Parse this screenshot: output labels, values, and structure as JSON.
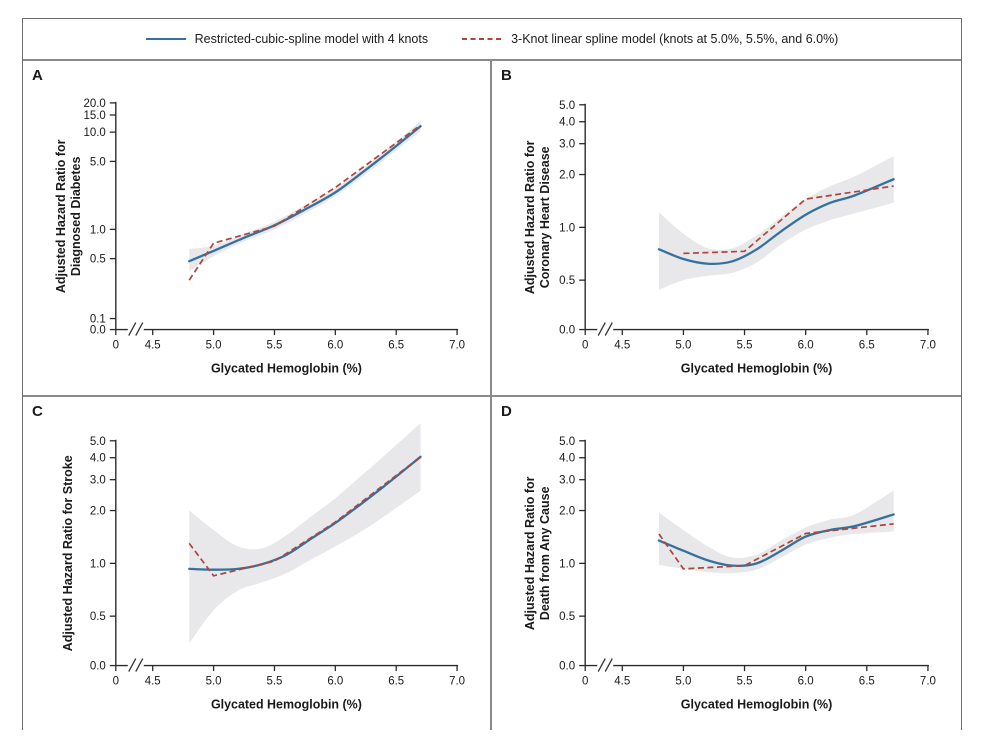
{
  "legend": {
    "items": [
      {
        "label": "Restricted-cubic-spline model with 4 knots",
        "style": "solid",
        "color": "#35719f"
      },
      {
        "label": "3-Knot linear spline model (knots at 5.0%, 5.5%, and 6.0%)",
        "style": "dashed",
        "color": "#ae453e"
      }
    ]
  },
  "colors": {
    "band": "#e8e8ea",
    "axis": "#2b2b2b",
    "solid_line": "#35719f",
    "dashed_line": "#ae453e"
  },
  "chart_data": [
    {
      "panel": "A",
      "type": "line",
      "yscale": "log",
      "outcome": "Diagnosed Diabetes",
      "xlabel": "Glycated Hemoglobin (%)",
      "ylabel_lines": [
        "Adjusted Hazard Ratio for",
        "Diagnosed Diabetes"
      ],
      "xtick_labels": [
        "0",
        "4.5",
        "5.0",
        "5.5",
        "6.0",
        "6.5",
        "7.0"
      ],
      "ytick_labels": [
        "20.0",
        "15.0",
        "10.0",
        "5.0",
        "1.0",
        "0.5",
        "0.1",
        "0.0"
      ],
      "series": [
        {
          "name": "Restricted-cubic-spline model with 4 knots",
          "line": "solid",
          "x": [
            4.8,
            5.0,
            5.25,
            5.5,
            5.75,
            6.0,
            6.25,
            6.5,
            6.7
          ],
          "y": [
            0.47,
            0.6,
            0.82,
            1.1,
            1.6,
            2.4,
            4.1,
            7.2,
            11.5
          ]
        },
        {
          "name": "3-Knot linear spline model",
          "line": "dashed",
          "x": [
            4.8,
            5.0,
            5.5,
            6.0,
            6.7
          ],
          "y": [
            0.3,
            0.72,
            1.08,
            2.7,
            11.8
          ]
        }
      ],
      "confidence_band": {
        "x": [
          4.8,
          5.0,
          5.25,
          5.5,
          5.75,
          6.0,
          6.25,
          6.5,
          6.7
        ],
        "lower": [
          0.37,
          0.53,
          0.75,
          1.0,
          1.45,
          2.2,
          3.7,
          6.5,
          10.2
        ],
        "upper": [
          0.63,
          0.68,
          0.9,
          1.2,
          1.77,
          2.65,
          4.55,
          8.0,
          13.0
        ]
      }
    },
    {
      "panel": "B",
      "type": "line",
      "yscale": "log",
      "outcome": "Coronary Heart Disease",
      "xlabel": "Glycated Hemoglobin (%)",
      "ylabel_lines": [
        "Adjusted Hazard Ratio for",
        "Coronary Heart Disease"
      ],
      "xtick_labels": [
        "0",
        "4.5",
        "5.0",
        "5.5",
        "6.0",
        "6.5",
        "7.0"
      ],
      "ytick_labels": [
        "5.0",
        "4.0",
        "3.0",
        "2.0",
        "1.0",
        "0.5",
        "0.0"
      ],
      "series": [
        {
          "name": "Restricted-cubic-spline model with 4 knots",
          "line": "solid",
          "x": [
            4.8,
            5.0,
            5.2,
            5.4,
            5.6,
            5.8,
            6.0,
            6.2,
            6.4,
            6.72
          ],
          "y": [
            0.75,
            0.66,
            0.62,
            0.64,
            0.75,
            0.95,
            1.18,
            1.38,
            1.52,
            1.88
          ]
        },
        {
          "name": "3-Knot linear spline model",
          "line": "dashed",
          "x": [
            5.0,
            5.5,
            6.0,
            6.72
          ],
          "y": [
            0.71,
            0.73,
            1.45,
            1.72
          ]
        }
      ],
      "confidence_band": {
        "x": [
          4.8,
          5.0,
          5.2,
          5.4,
          5.6,
          5.8,
          6.0,
          6.2,
          6.4,
          6.72
        ],
        "lower": [
          0.44,
          0.5,
          0.53,
          0.55,
          0.63,
          0.8,
          0.97,
          1.1,
          1.2,
          1.38
        ],
        "upper": [
          1.22,
          0.92,
          0.76,
          0.76,
          0.9,
          1.15,
          1.45,
          1.72,
          1.95,
          2.55
        ]
      }
    },
    {
      "panel": "C",
      "type": "line",
      "yscale": "log",
      "outcome": "Stroke",
      "xlabel": "Glycated Hemoglobin (%)",
      "ylabel_lines": [
        "Adjusted Hazard Ratio for Stroke"
      ],
      "xtick_labels": [
        "0",
        "4.5",
        "5.0",
        "5.5",
        "6.0",
        "6.5",
        "7.0"
      ],
      "ytick_labels": [
        "5.0",
        "4.0",
        "3.0",
        "2.0",
        "1.0",
        "0.5",
        "0.0"
      ],
      "series": [
        {
          "name": "Restricted-cubic-spline model with 4 knots",
          "line": "solid",
          "x": [
            4.8,
            5.0,
            5.2,
            5.4,
            5.6,
            5.8,
            6.0,
            6.2,
            6.4,
            6.7
          ],
          "y": [
            0.93,
            0.92,
            0.93,
            0.99,
            1.12,
            1.38,
            1.7,
            2.15,
            2.75,
            4.05
          ]
        },
        {
          "name": "3-Knot linear spline model",
          "line": "dashed",
          "x": [
            4.8,
            5.0,
            5.5,
            6.0,
            6.7
          ],
          "y": [
            1.3,
            0.85,
            1.03,
            1.72,
            4.05
          ]
        }
      ],
      "confidence_band": {
        "x": [
          4.8,
          5.0,
          5.2,
          5.4,
          5.6,
          5.8,
          6.0,
          6.2,
          6.4,
          6.7
        ],
        "lower": [
          0.35,
          0.54,
          0.7,
          0.78,
          0.88,
          1.05,
          1.25,
          1.5,
          1.85,
          2.6
        ],
        "upper": [
          2.0,
          1.55,
          1.25,
          1.22,
          1.45,
          1.85,
          2.35,
          3.1,
          4.1,
          6.3
        ]
      }
    },
    {
      "panel": "D",
      "type": "line",
      "yscale": "log",
      "outcome": "Death from Any Cause",
      "xlabel": "Glycated Hemoglobin (%)",
      "ylabel_lines": [
        "Adjusted Hazard Ratio for",
        "Death from Any Cause"
      ],
      "xtick_labels": [
        "0",
        "4.5",
        "5.0",
        "5.5",
        "6.0",
        "6.5",
        "7.0"
      ],
      "ytick_labels": [
        "5.0",
        "4.0",
        "3.0",
        "2.0",
        "1.0",
        "0.5",
        "0.0"
      ],
      "series": [
        {
          "name": "Restricted-cubic-spline model with 4 knots",
          "line": "solid",
          "x": [
            4.8,
            5.0,
            5.2,
            5.4,
            5.6,
            5.8,
            6.0,
            6.2,
            6.4,
            6.72
          ],
          "y": [
            1.35,
            1.18,
            1.04,
            0.97,
            1.0,
            1.18,
            1.42,
            1.55,
            1.63,
            1.9
          ]
        },
        {
          "name": "3-Knot linear spline model",
          "line": "dashed",
          "x": [
            4.8,
            5.0,
            5.5,
            6.0,
            6.72
          ],
          "y": [
            1.47,
            0.93,
            0.97,
            1.48,
            1.68
          ]
        }
      ],
      "confidence_band": {
        "x": [
          4.8,
          5.0,
          5.2,
          5.4,
          5.6,
          5.8,
          6.0,
          6.2,
          6.4,
          6.72
        ],
        "lower": [
          0.98,
          0.93,
          0.89,
          0.88,
          0.92,
          1.08,
          1.28,
          1.4,
          1.47,
          1.52
        ],
        "upper": [
          1.95,
          1.55,
          1.25,
          1.08,
          1.12,
          1.35,
          1.6,
          1.78,
          1.9,
          2.6
        ]
      }
    }
  ]
}
